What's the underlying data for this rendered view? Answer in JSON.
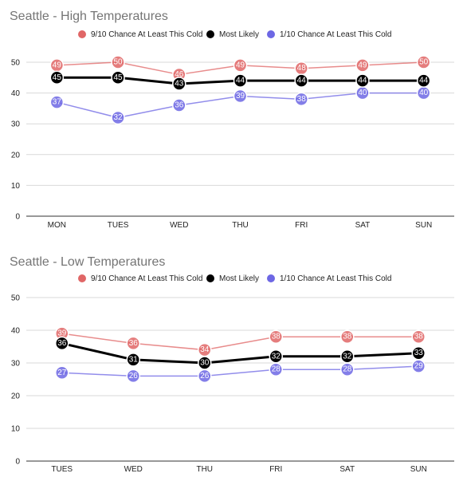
{
  "chart_data": [
    {
      "type": "line",
      "title": "Seattle - High Temperatures",
      "categories": [
        "MON",
        "TUES",
        "WED",
        "THU",
        "FRI",
        "SAT",
        "SUN"
      ],
      "ylim": [
        0,
        50
      ],
      "yticks": [
        0,
        10,
        20,
        30,
        40,
        50
      ],
      "grid": true,
      "legend_position": "top",
      "series": [
        {
          "name": "9/10 Chance At Least This Cold",
          "color": "#e06666",
          "values": [
            49,
            50,
            46,
            49,
            48,
            49,
            50
          ]
        },
        {
          "name": "Most Likely",
          "color": "#000000",
          "values": [
            45,
            45,
            43,
            44,
            44,
            44,
            44
          ]
        },
        {
          "name": "1/10 Chance At Least This Cold",
          "color": "#6d67e4",
          "values": [
            37,
            32,
            36,
            39,
            38,
            40,
            40
          ]
        }
      ]
    },
    {
      "type": "line",
      "title": "Seattle - Low Temperatures",
      "categories": [
        "TUES",
        "WED",
        "THU",
        "FRI",
        "SAT",
        "SUN"
      ],
      "ylim": [
        0,
        50
      ],
      "yticks": [
        0,
        10,
        20,
        30,
        40,
        50
      ],
      "grid": true,
      "legend_position": "top",
      "series": [
        {
          "name": "9/10 Chance At Least This Cold",
          "color": "#e06666",
          "values": [
            39,
            36,
            34,
            38,
            38,
            38
          ]
        },
        {
          "name": "Most Likely",
          "color": "#000000",
          "values": [
            36,
            31,
            30,
            32,
            32,
            33
          ]
        },
        {
          "name": "1/10 Chance At Least This Cold",
          "color": "#6d67e4",
          "values": [
            27,
            26,
            26,
            28,
            28,
            29
          ]
        }
      ]
    }
  ]
}
